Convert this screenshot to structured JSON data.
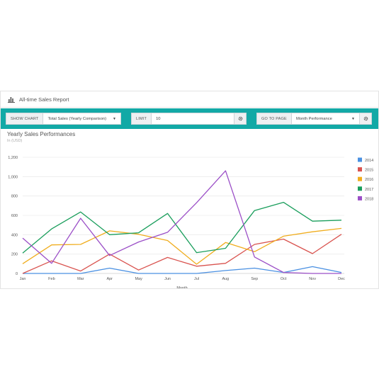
{
  "panel": {
    "title": "All-time Sales Report"
  },
  "toolbar": {
    "show_chart_label": "SHOW CHART",
    "show_chart_value": "Total Sales (Yearly Comparison)",
    "limit_label": "LIMIT",
    "limit_value": "10",
    "go_to_page_label": "GO TO PAGE",
    "go_to_page_value": "Month Performance"
  },
  "chart_heading": {
    "title": "Yearly Sales Performances",
    "subtitle": "In (USD)"
  },
  "colors": {
    "accent": "#12a9a6"
  },
  "chart_data": {
    "type": "line",
    "title": "Yearly Sales Performances",
    "subtitle": "In (USD)",
    "xlabel": "Month",
    "ylabel": "",
    "x": [
      "Jan",
      "Feb",
      "Mar",
      "Apr",
      "May",
      "Jun",
      "Jul",
      "Aug",
      "Sep",
      "Oct",
      "Nov",
      "Dec"
    ],
    "ylim": [
      0,
      1200
    ],
    "yticks": [
      0,
      200,
      400,
      600,
      800,
      1000,
      1200
    ],
    "ytick_labels": [
      "0",
      "200",
      "400",
      "600",
      "800",
      "1,000",
      "1,200"
    ],
    "grid": true,
    "legend": "right",
    "series": [
      {
        "name": "2014",
        "color": "#4a90e2",
        "values": [
          0,
          0,
          0,
          55,
          0,
          0,
          0,
          30,
          55,
          10,
          70,
          10
        ]
      },
      {
        "name": "2015",
        "color": "#d9534f",
        "values": [
          0,
          130,
          25,
          200,
          35,
          165,
          75,
          105,
          300,
          355,
          205,
          405
        ]
      },
      {
        "name": "2016",
        "color": "#f0ad1e",
        "values": [
          100,
          295,
          300,
          440,
          405,
          340,
          95,
          320,
          225,
          385,
          430,
          465
        ]
      },
      {
        "name": "2017",
        "color": "#1a9e5c",
        "values": [
          210,
          460,
          635,
          400,
          420,
          620,
          215,
          260,
          650,
          735,
          540,
          550
        ]
      },
      {
        "name": "2018",
        "color": "#9b4fc7",
        "values": [
          365,
          105,
          570,
          185,
          325,
          425,
          730,
          1060,
          170,
          10,
          0,
          0
        ]
      }
    ]
  }
}
